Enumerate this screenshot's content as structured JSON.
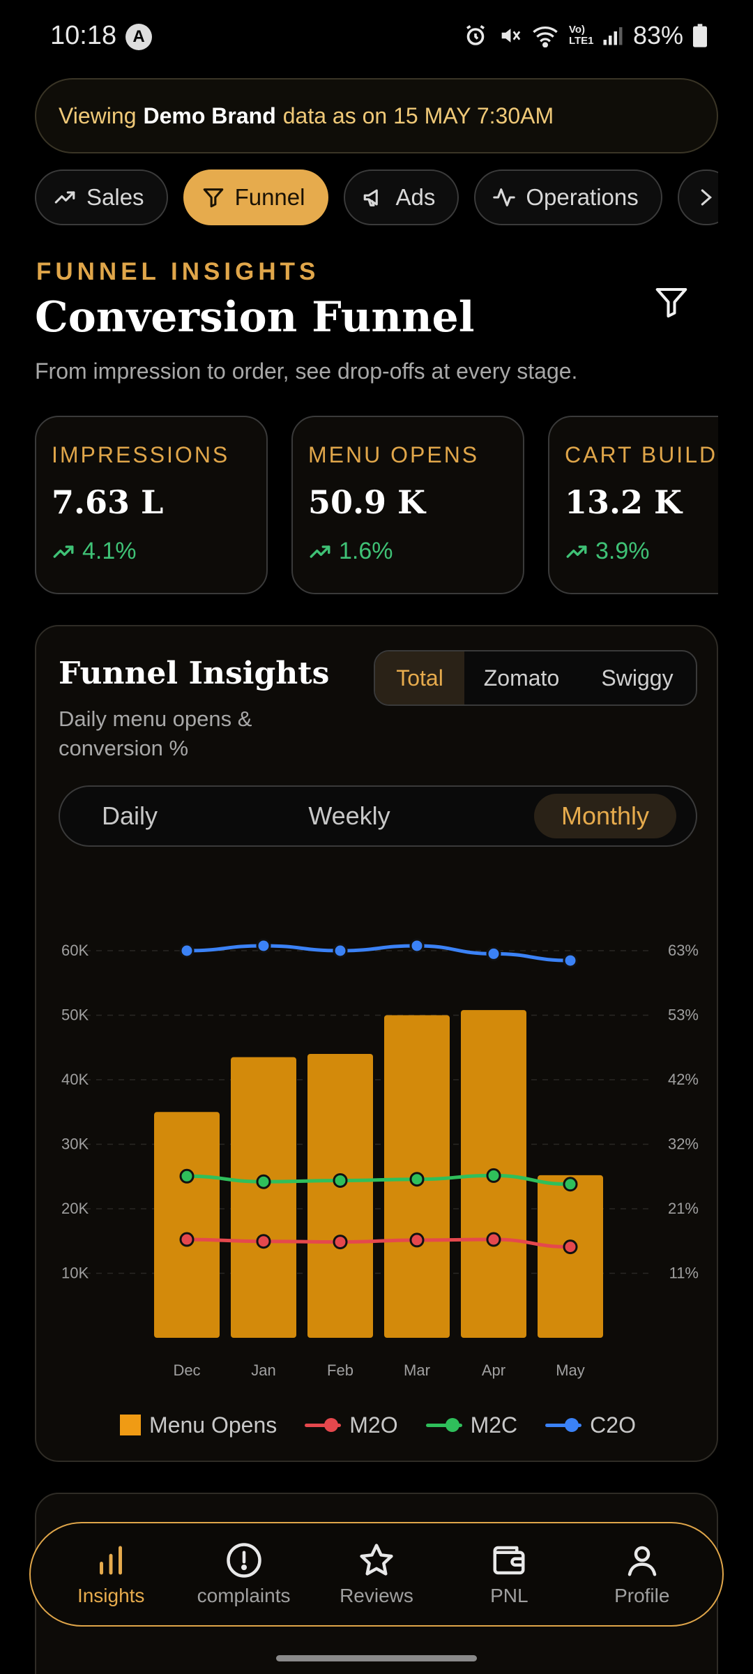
{
  "status_bar": {
    "time": "10:18",
    "notification_letter": "A",
    "battery": "83%",
    "lte_label": "Vo) LTE1"
  },
  "banner": {
    "prefix": "Viewing",
    "brand": "Demo Brand",
    "suffix": "data as on 15 MAY 7:30AM"
  },
  "tabs": [
    {
      "label": "Sales",
      "icon": "trending-up-icon",
      "active": false
    },
    {
      "label": "Funnel",
      "icon": "funnel-icon",
      "active": true
    },
    {
      "label": "Ads",
      "icon": "megaphone-icon",
      "active": false
    },
    {
      "label": "Operations",
      "icon": "activity-icon",
      "active": false
    }
  ],
  "header": {
    "eyebrow": "FUNNEL INSIGHTS",
    "title": "Conversion Funnel",
    "subtitle": "From impression to order, see drop-offs at every stage."
  },
  "kpis": [
    {
      "label": "IMPRESSIONS",
      "value": "7.63 L",
      "delta": "4.1%"
    },
    {
      "label": "MENU OPENS",
      "value": "50.9 K",
      "delta": "1.6%"
    },
    {
      "label": "CART BUILDS",
      "value": "13.2 K",
      "delta": "3.9%"
    }
  ],
  "insights": {
    "title": "Funnel Insights",
    "subtitle": "Daily menu opens & conversion %",
    "source_options": [
      "Total",
      "Zomato",
      "Swiggy"
    ],
    "source_selected": "Total",
    "period_options": [
      "Daily",
      "Weekly",
      "Monthly"
    ],
    "period_selected": "Monthly"
  },
  "colors": {
    "accent": "#e6ab4d",
    "bar": "#d38a0b",
    "m2o": "#e5484d",
    "m2c": "#2fbf5b",
    "c2o": "#3b82f6",
    "positive": "#3fc276"
  },
  "chart_data": {
    "type": "bar",
    "categories": [
      "Dec",
      "Jan",
      "Feb",
      "Mar",
      "Apr",
      "May"
    ],
    "series": [
      {
        "name": "Menu Opens",
        "type": "bar",
        "axis": "left",
        "values": [
          35000,
          43500,
          44000,
          50000,
          50800,
          25200
        ]
      },
      {
        "name": "M2O",
        "type": "line",
        "axis": "right",
        "values": [
          16,
          15.7,
          15.6,
          15.9,
          16,
          14.8
        ]
      },
      {
        "name": "M2C",
        "type": "line",
        "axis": "right",
        "values": [
          26.3,
          25.4,
          25.6,
          25.8,
          26.4,
          25
        ]
      },
      {
        "name": "C2O",
        "type": "line",
        "axis": "right",
        "values": [
          63,
          63.8,
          63,
          63.8,
          62.5,
          61.4
        ]
      }
    ],
    "y_left": {
      "ticks": [
        "60K",
        "50K",
        "40K",
        "30K",
        "20K",
        "10K"
      ],
      "tick_values": [
        60000,
        50000,
        40000,
        30000,
        20000,
        10000
      ],
      "range": [
        0,
        60000
      ]
    },
    "y_right": {
      "ticks": [
        "63%",
        "53%",
        "42%",
        "32%",
        "21%",
        "11%"
      ],
      "tick_values": [
        63,
        53,
        42,
        32,
        21,
        11
      ],
      "range": [
        0,
        63
      ]
    },
    "grid": true,
    "legend_position": "bottom"
  },
  "bottom_nav": [
    {
      "label": "Insights",
      "icon": "bar-chart-icon",
      "active": true
    },
    {
      "label": "complaints",
      "icon": "alert-circle-icon",
      "active": false
    },
    {
      "label": "Reviews",
      "icon": "star-icon",
      "active": false
    },
    {
      "label": "PNL",
      "icon": "wallet-icon",
      "active": false
    },
    {
      "label": "Profile",
      "icon": "user-icon",
      "active": false
    }
  ]
}
